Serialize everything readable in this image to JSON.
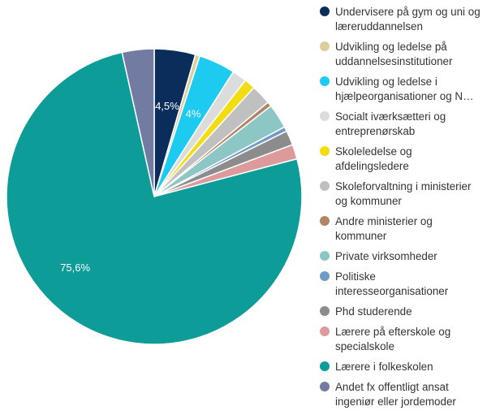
{
  "chart_data": {
    "type": "pie",
    "legend_position": "right",
    "slices": [
      {
        "label": "Undervisere på gym og uni og læreruddannelsen",
        "value": 4.5,
        "color": "#0b2d5c",
        "data_label": "4,5%"
      },
      {
        "label": "Udvikling og ledelse på uddannelsesinstitutioner",
        "value": 0.5,
        "color": "#dccf9e",
        "data_label": ""
      },
      {
        "label": "Udvikling og ledelse i hjælpeorganisationer og N…",
        "value": 4.0,
        "color": "#1dcaf0",
        "data_label": "4%"
      },
      {
        "label": "Socialt iværksætteri og entreprenørskab",
        "value": 1.6,
        "color": "#dcdcdc",
        "data_label": ""
      },
      {
        "label": "Skoleledelse og afdelingsledere",
        "value": 1.2,
        "color": "#f2dd13",
        "data_label": ""
      },
      {
        "label": "Skoleforvaltning i ministerier og kommuner",
        "value": 2.2,
        "color": "#c0c0c0",
        "data_label": ""
      },
      {
        "label": "Andre ministerier og kommuner",
        "value": 0.5,
        "color": "#b08566",
        "data_label": ""
      },
      {
        "label": "Private virksomheder",
        "value": 2.7,
        "color": "#8dc7c5",
        "data_label": ""
      },
      {
        "label": "Politiske interesseorganisationer",
        "value": 0.5,
        "color": "#6f9ac5",
        "data_label": ""
      },
      {
        "label": "Phd studerende",
        "value": 1.6,
        "color": "#8c8c8c",
        "data_label": ""
      },
      {
        "label": "Lærere på efterskole og specialskole",
        "value": 1.6,
        "color": "#dc9a9a",
        "data_label": ""
      },
      {
        "label": "Lærere i folkeskolen",
        "value": 75.6,
        "color": "#0d9c98",
        "data_label": "75,6%"
      },
      {
        "label": "Andet fx offentligt ansat ingeniør eller jordemoder",
        "value": 3.5,
        "color": "#727ca2",
        "data_label": ""
      }
    ]
  }
}
